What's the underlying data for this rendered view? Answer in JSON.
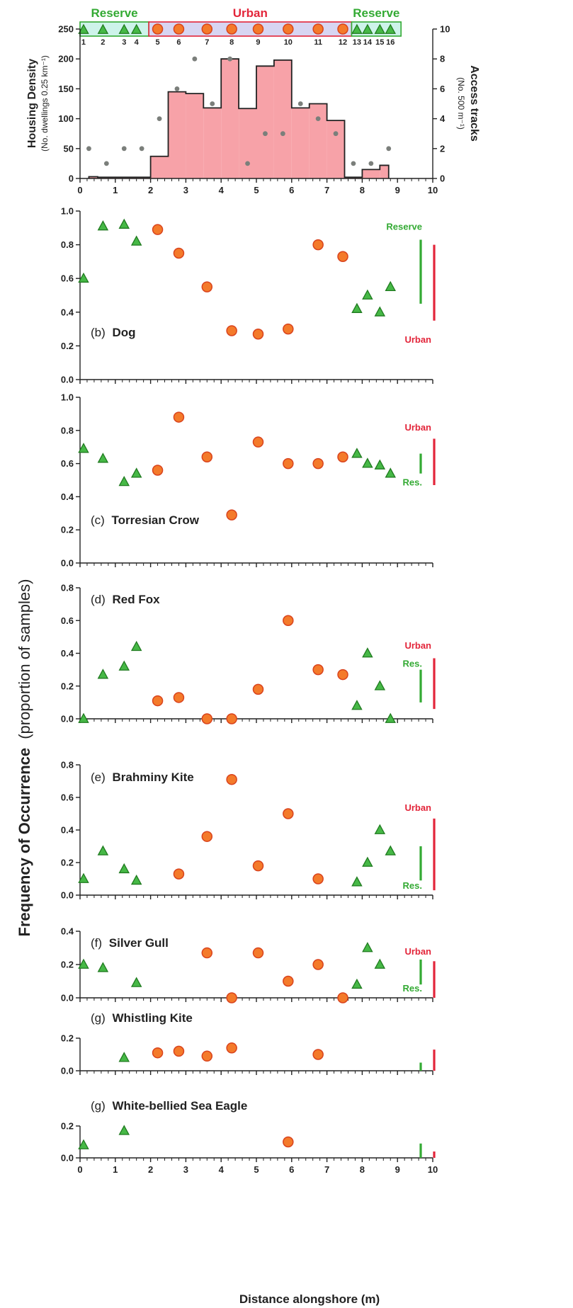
{
  "colors": {
    "reserve": "#33aa33",
    "urban": "#e3253a",
    "urban_marker_fill": "#f47a2a",
    "urban_marker_edge": "#d9431d",
    "reserve_marker_fill": "#46b846",
    "reserve_marker_edge": "#1f7a1f",
    "bars_fill": "#f7a2a8",
    "bars_edge": "#222222",
    "track_dots": "#7b7f7b",
    "reserve_band_fill": "#cdf3ea",
    "urban_band_fill": "#d7d5f2"
  },
  "shared": {
    "xlabel": "Distance alongshore (m)",
    "ylabel_main": "Frequency of Occurrence",
    "ylabel_main_sub": "(proportion of samples)",
    "xticks": [
      "0",
      "1",
      "2",
      "3",
      "4",
      "5",
      "6",
      "7",
      "8",
      "9",
      "10"
    ]
  },
  "chart_data": [
    {
      "type": "bar",
      "panel": "housing",
      "ylabel": "Housing Density",
      "ylabel_sub": "(No. dwellings 0.25 km⁻¹)",
      "y2label": "Access tracks",
      "y2label_sub": "(No. 500 m⁻¹)",
      "ylim": [
        0,
        250
      ],
      "yticks": [
        "0",
        "50",
        "100",
        "150",
        "200",
        "250"
      ],
      "y2lim": [
        0,
        10
      ],
      "y2ticks": [
        "0",
        "2",
        "4",
        "6",
        "8",
        "10"
      ],
      "xlim": [
        0,
        10
      ],
      "zones": [
        {
          "name": "Reserve",
          "kind": "reserve",
          "from": 0,
          "to": 1.95
        },
        {
          "name": "Urban",
          "kind": "urban",
          "from": 1.95,
          "to": 7.7
        },
        {
          "name": "Reserve",
          "kind": "reserve",
          "from": 7.7,
          "to": 9.1
        }
      ],
      "sites": [
        {
          "n": "1",
          "x": 0.1,
          "kind": "reserve"
        },
        {
          "n": "2",
          "x": 0.65,
          "kind": "reserve"
        },
        {
          "n": "3",
          "x": 1.25,
          "kind": "reserve"
        },
        {
          "n": "4",
          "x": 1.6,
          "kind": "reserve"
        },
        {
          "n": "5",
          "x": 2.2,
          "kind": "urban"
        },
        {
          "n": "6",
          "x": 2.8,
          "kind": "urban"
        },
        {
          "n": "7",
          "x": 3.6,
          "kind": "urban"
        },
        {
          "n": "8",
          "x": 4.3,
          "kind": "urban"
        },
        {
          "n": "9",
          "x": 5.05,
          "kind": "urban"
        },
        {
          "n": "10",
          "x": 5.9,
          "kind": "urban"
        },
        {
          "n": "11",
          "x": 6.75,
          "kind": "urban"
        },
        {
          "n": "12",
          "x": 7.45,
          "kind": "urban"
        },
        {
          "n": "13",
          "x": 7.85,
          "kind": "reserve"
        },
        {
          "n": "14",
          "x": 8.15,
          "kind": "reserve"
        },
        {
          "n": "15",
          "x": 8.5,
          "kind": "reserve"
        },
        {
          "n": "16",
          "x": 8.8,
          "kind": "reserve"
        }
      ],
      "bars": [
        {
          "x0": 0.25,
          "x1": 0.5,
          "y": 3
        },
        {
          "x0": 0.5,
          "x1": 2.0,
          "y": 2
        },
        {
          "x0": 2.0,
          "x1": 2.5,
          "y": 37
        },
        {
          "x0": 2.5,
          "x1": 3.0,
          "y": 145
        },
        {
          "x0": 3.0,
          "x1": 3.5,
          "y": 142
        },
        {
          "x0": 3.5,
          "x1": 4.0,
          "y": 118
        },
        {
          "x0": 4.0,
          "x1": 4.5,
          "y": 200
        },
        {
          "x0": 4.5,
          "x1": 5.0,
          "y": 117
        },
        {
          "x0": 5.0,
          "x1": 5.5,
          "y": 188
        },
        {
          "x0": 5.5,
          "x1": 6.0,
          "y": 198
        },
        {
          "x0": 6.0,
          "x1": 6.5,
          "y": 118
        },
        {
          "x0": 6.5,
          "x1": 7.0,
          "y": 125
        },
        {
          "x0": 7.0,
          "x1": 7.5,
          "y": 97
        },
        {
          "x0": 7.5,
          "x1": 8.0,
          "y": 2
        },
        {
          "x0": 8.0,
          "x1": 8.5,
          "y": 15
        },
        {
          "x0": 8.5,
          "x1": 8.75,
          "y": 22
        }
      ],
      "tracks": [
        {
          "x": 0.25,
          "y": 2
        },
        {
          "x": 0.75,
          "y": 1
        },
        {
          "x": 1.25,
          "y": 2
        },
        {
          "x": 1.75,
          "y": 2
        },
        {
          "x": 2.25,
          "y": 4
        },
        {
          "x": 2.75,
          "y": 6
        },
        {
          "x": 3.25,
          "y": 8
        },
        {
          "x": 3.75,
          "y": 5
        },
        {
          "x": 4.25,
          "y": 8
        },
        {
          "x": 4.75,
          "y": 1
        },
        {
          "x": 5.25,
          "y": 3
        },
        {
          "x": 5.75,
          "y": 3
        },
        {
          "x": 6.25,
          "y": 5
        },
        {
          "x": 6.75,
          "y": 4
        },
        {
          "x": 7.25,
          "y": 3
        },
        {
          "x": 7.75,
          "y": 1
        },
        {
          "x": 8.25,
          "y": 1
        },
        {
          "x": 8.75,
          "y": 2
        }
      ]
    },
    {
      "type": "scatter",
      "panel": "b",
      "label_prefix": "(b)",
      "label_name": "Dog",
      "ylim": [
        0,
        1.0
      ],
      "yticks": [
        "0.0",
        "0.2",
        "0.4",
        "0.6",
        "0.8",
        "1.0"
      ],
      "points": [
        {
          "x": 0.1,
          "y": 0.6,
          "kind": "reserve"
        },
        {
          "x": 0.65,
          "y": 0.91,
          "kind": "reserve"
        },
        {
          "x": 1.25,
          "y": 0.92,
          "kind": "reserve"
        },
        {
          "x": 1.6,
          "y": 0.82,
          "kind": "reserve"
        },
        {
          "x": 2.2,
          "y": 0.89,
          "kind": "urban"
        },
        {
          "x": 2.8,
          "y": 0.75,
          "kind": "urban"
        },
        {
          "x": 3.6,
          "y": 0.55,
          "kind": "urban"
        },
        {
          "x": 4.3,
          "y": 0.29,
          "kind": "urban"
        },
        {
          "x": 5.05,
          "y": 0.27,
          "kind": "urban"
        },
        {
          "x": 5.9,
          "y": 0.3,
          "kind": "urban"
        },
        {
          "x": 6.75,
          "y": 0.8,
          "kind": "urban"
        },
        {
          "x": 7.45,
          "y": 0.73,
          "kind": "urban"
        },
        {
          "x": 7.85,
          "y": 0.42,
          "kind": "reserve"
        },
        {
          "x": 8.15,
          "y": 0.5,
          "kind": "reserve"
        },
        {
          "x": 8.5,
          "y": 0.4,
          "kind": "reserve"
        },
        {
          "x": 8.8,
          "y": 0.55,
          "kind": "reserve"
        }
      ],
      "ranges": [
        {
          "kind": "reserve",
          "label": "Reserve",
          "from": 0.45,
          "to": 0.83,
          "label_y": 0.91
        },
        {
          "kind": "urban",
          "label": "Urban",
          "from": 0.35,
          "to": 0.8,
          "label_y": 0.24
        }
      ]
    },
    {
      "type": "scatter",
      "panel": "c",
      "label_prefix": "(c)",
      "label_name": "Torresian Crow",
      "ylim": [
        0,
        1.0
      ],
      "yticks": [
        "0.0",
        "0.2",
        "0.4",
        "0.6",
        "0.8",
        "1.0"
      ],
      "points": [
        {
          "x": 0.1,
          "y": 0.69,
          "kind": "reserve"
        },
        {
          "x": 0.65,
          "y": 0.63,
          "kind": "reserve"
        },
        {
          "x": 1.25,
          "y": 0.49,
          "kind": "reserve"
        },
        {
          "x": 1.6,
          "y": 0.54,
          "kind": "reserve"
        },
        {
          "x": 2.2,
          "y": 0.56,
          "kind": "urban"
        },
        {
          "x": 2.8,
          "y": 0.88,
          "kind": "urban"
        },
        {
          "x": 3.6,
          "y": 0.64,
          "kind": "urban"
        },
        {
          "x": 4.3,
          "y": 0.29,
          "kind": "urban"
        },
        {
          "x": 5.05,
          "y": 0.73,
          "kind": "urban"
        },
        {
          "x": 5.9,
          "y": 0.6,
          "kind": "urban"
        },
        {
          "x": 6.75,
          "y": 0.6,
          "kind": "urban"
        },
        {
          "x": 7.45,
          "y": 0.64,
          "kind": "urban"
        },
        {
          "x": 7.85,
          "y": 0.66,
          "kind": "reserve"
        },
        {
          "x": 8.15,
          "y": 0.6,
          "kind": "reserve"
        },
        {
          "x": 8.5,
          "y": 0.59,
          "kind": "reserve"
        },
        {
          "x": 8.8,
          "y": 0.54,
          "kind": "reserve"
        }
      ],
      "ranges": [
        {
          "kind": "reserve",
          "label": "Res.",
          "from": 0.54,
          "to": 0.66,
          "label_y": 0.49
        },
        {
          "kind": "urban",
          "label": "Urban",
          "from": 0.47,
          "to": 0.75,
          "label_y": 0.82
        }
      ]
    },
    {
      "type": "scatter",
      "panel": "d",
      "label_prefix": "(d)",
      "label_name": "Red Fox",
      "ylim": [
        0,
        0.8
      ],
      "yticks": [
        "0.0",
        "0.2",
        "0.4",
        "0.6",
        "0.8"
      ],
      "points": [
        {
          "x": 0.1,
          "y": 0.0,
          "kind": "reserve"
        },
        {
          "x": 0.65,
          "y": 0.27,
          "kind": "reserve"
        },
        {
          "x": 1.25,
          "y": 0.32,
          "kind": "reserve"
        },
        {
          "x": 1.6,
          "y": 0.44,
          "kind": "reserve"
        },
        {
          "x": 2.2,
          "y": 0.11,
          "kind": "urban"
        },
        {
          "x": 2.8,
          "y": 0.13,
          "kind": "urban"
        },
        {
          "x": 3.6,
          "y": 0.0,
          "kind": "urban"
        },
        {
          "x": 4.3,
          "y": 0.0,
          "kind": "urban"
        },
        {
          "x": 5.05,
          "y": 0.18,
          "kind": "urban"
        },
        {
          "x": 5.9,
          "y": 0.6,
          "kind": "urban"
        },
        {
          "x": 6.75,
          "y": 0.3,
          "kind": "urban"
        },
        {
          "x": 7.45,
          "y": 0.27,
          "kind": "urban"
        },
        {
          "x": 7.85,
          "y": 0.08,
          "kind": "reserve"
        },
        {
          "x": 8.15,
          "y": 0.4,
          "kind": "reserve"
        },
        {
          "x": 8.5,
          "y": 0.2,
          "kind": "reserve"
        },
        {
          "x": 8.8,
          "y": 0.0,
          "kind": "reserve"
        }
      ],
      "ranges": [
        {
          "kind": "reserve",
          "label": "Res.",
          "from": 0.1,
          "to": 0.3,
          "label_y": 0.34
        },
        {
          "kind": "urban",
          "label": "Urban",
          "from": 0.06,
          "to": 0.37,
          "label_y": 0.45
        }
      ]
    },
    {
      "type": "scatter",
      "panel": "e",
      "label_prefix": "(e)",
      "label_name": "Brahminy Kite",
      "ylim": [
        0,
        0.8
      ],
      "yticks": [
        "0.0",
        "0.2",
        "0.4",
        "0.6",
        "0.8"
      ],
      "points": [
        {
          "x": 0.1,
          "y": 0.1,
          "kind": "reserve"
        },
        {
          "x": 0.65,
          "y": 0.27,
          "kind": "reserve"
        },
        {
          "x": 1.25,
          "y": 0.16,
          "kind": "reserve"
        },
        {
          "x": 1.6,
          "y": 0.09,
          "kind": "reserve"
        },
        {
          "x": 2.8,
          "y": 0.13,
          "kind": "urban"
        },
        {
          "x": 3.6,
          "y": 0.36,
          "kind": "urban"
        },
        {
          "x": 4.3,
          "y": 0.71,
          "kind": "urban"
        },
        {
          "x": 5.05,
          "y": 0.18,
          "kind": "urban"
        },
        {
          "x": 5.9,
          "y": 0.5,
          "kind": "urban"
        },
        {
          "x": 6.75,
          "y": 0.1,
          "kind": "urban"
        },
        {
          "x": 7.85,
          "y": 0.08,
          "kind": "reserve"
        },
        {
          "x": 8.15,
          "y": 0.2,
          "kind": "reserve"
        },
        {
          "x": 8.5,
          "y": 0.4,
          "kind": "reserve"
        },
        {
          "x": 8.8,
          "y": 0.27,
          "kind": "reserve"
        }
      ],
      "ranges": [
        {
          "kind": "reserve",
          "label": "Res.",
          "from": 0.09,
          "to": 0.3,
          "label_y": 0.06
        },
        {
          "kind": "urban",
          "label": "Urban",
          "from": 0.03,
          "to": 0.47,
          "label_y": 0.54
        }
      ]
    },
    {
      "type": "scatter",
      "panel": "f",
      "label_prefix": "(f)",
      "label_name": "Silver Gull",
      "ylim": [
        0,
        0.4
      ],
      "yticks": [
        "0.0",
        "0.2",
        "0.4"
      ],
      "points": [
        {
          "x": 0.1,
          "y": 0.2,
          "kind": "reserve"
        },
        {
          "x": 0.65,
          "y": 0.18,
          "kind": "reserve"
        },
        {
          "x": 1.6,
          "y": 0.09,
          "kind": "reserve"
        },
        {
          "x": 3.6,
          "y": 0.27,
          "kind": "urban"
        },
        {
          "x": 4.3,
          "y": 0.0,
          "kind": "urban"
        },
        {
          "x": 5.05,
          "y": 0.27,
          "kind": "urban"
        },
        {
          "x": 5.9,
          "y": 0.1,
          "kind": "urban"
        },
        {
          "x": 6.75,
          "y": 0.2,
          "kind": "urban"
        },
        {
          "x": 7.45,
          "y": 0.0,
          "kind": "urban"
        },
        {
          "x": 7.85,
          "y": 0.08,
          "kind": "reserve"
        },
        {
          "x": 8.15,
          "y": 0.3,
          "kind": "reserve"
        },
        {
          "x": 8.5,
          "y": 0.2,
          "kind": "reserve"
        }
      ],
      "ranges": [
        {
          "kind": "reserve",
          "label": "Res.",
          "from": 0.08,
          "to": 0.23,
          "label_y": 0.06
        },
        {
          "kind": "urban",
          "label": "Urban",
          "from": 0.0,
          "to": 0.22,
          "label_y": 0.28
        }
      ]
    },
    {
      "type": "scatter",
      "panel": "g1",
      "label_prefix": "(g)",
      "label_name": "Whistling Kite",
      "ylim": [
        0,
        0.2
      ],
      "yticks": [
        "0.0",
        "0.2"
      ],
      "points": [
        {
          "x": 1.25,
          "y": 0.08,
          "kind": "reserve"
        },
        {
          "x": 2.2,
          "y": 0.11,
          "kind": "urban"
        },
        {
          "x": 2.8,
          "y": 0.12,
          "kind": "urban"
        },
        {
          "x": 3.6,
          "y": 0.09,
          "kind": "urban"
        },
        {
          "x": 4.3,
          "y": 0.14,
          "kind": "urban"
        },
        {
          "x": 6.75,
          "y": 0.1,
          "kind": "urban"
        }
      ],
      "ranges": [
        {
          "kind": "reserve",
          "label": "",
          "from": 0.0,
          "to": 0.05,
          "label_y": 0
        },
        {
          "kind": "urban",
          "label": "",
          "from": 0.0,
          "to": 0.13,
          "label_y": 0
        }
      ]
    },
    {
      "type": "scatter",
      "panel": "g2",
      "label_prefix": "(g)",
      "label_name": "White-bellied Sea Eagle",
      "ylim": [
        0,
        0.2
      ],
      "yticks": [
        "0.0",
        "0.2"
      ],
      "points": [
        {
          "x": 0.1,
          "y": 0.08,
          "kind": "reserve"
        },
        {
          "x": 1.25,
          "y": 0.17,
          "kind": "reserve"
        },
        {
          "x": 5.9,
          "y": 0.1,
          "kind": "urban"
        }
      ],
      "ranges": [
        {
          "kind": "reserve",
          "label": "",
          "from": 0.0,
          "to": 0.09,
          "label_y": 0
        },
        {
          "kind": "urban",
          "label": "",
          "from": 0.0,
          "to": 0.04,
          "label_y": 0
        }
      ]
    }
  ]
}
